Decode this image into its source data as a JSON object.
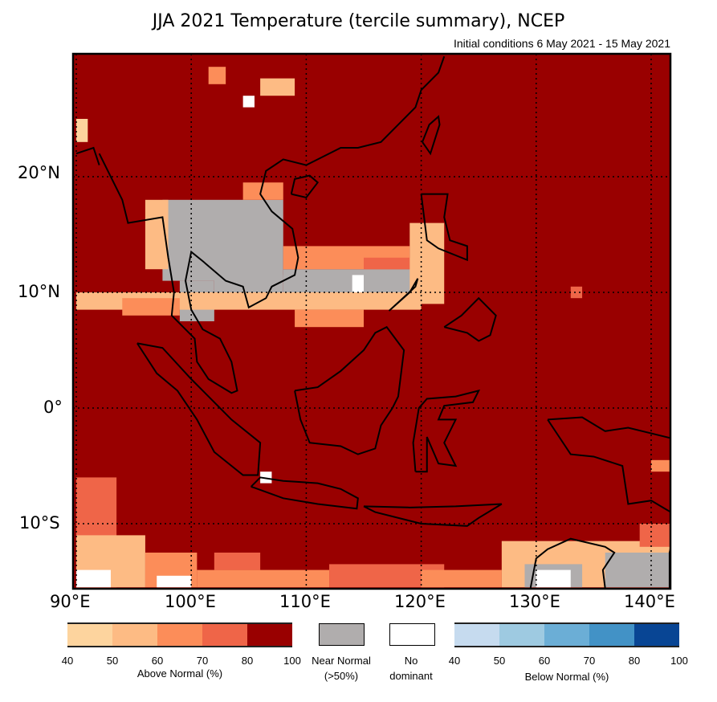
{
  "title": "JJA 2021 Temperature (tercile summary), NCEP",
  "subtitle": "Initial conditions 6 May 2021 - 15 May 2021",
  "axes": {
    "lon_labels": [
      "90°E",
      "100°E",
      "110°E",
      "120°E",
      "130°E",
      "140°E"
    ],
    "lat_labels": [
      "20°N",
      "10°N",
      "0°",
      "10°S"
    ]
  },
  "legend": {
    "above": {
      "label": "Above Normal (%)",
      "ticks": [
        "40",
        "50",
        "60",
        "70",
        "80",
        "100"
      ],
      "colors": [
        "#fdd49e",
        "#fdbb84",
        "#fc8d59",
        "#ef6548",
        "#990000"
      ]
    },
    "near": {
      "label_line1": "Near Normal",
      "label_line2": "(>50%)",
      "color": "#b0adad"
    },
    "none": {
      "label_line1": "No",
      "label_line2": "dominant",
      "color": "#ffffff"
    },
    "below": {
      "label": "Below Normal (%)",
      "ticks": [
        "40",
        "50",
        "60",
        "70",
        "80",
        "100"
      ],
      "colors": [
        "#c6dbef",
        "#9ecae1",
        "#6baed6",
        "#4292c6",
        "#084594"
      ]
    }
  },
  "map_data": {
    "background_category": "above_80_100",
    "extent": {
      "lon": [
        89.7,
        141.7
      ],
      "lat": [
        -15.6,
        30.4
      ]
    },
    "patches": [
      {
        "lon": [
          97.5,
          108
        ],
        "lat": [
          11,
          18
        ],
        "cat": "near"
      },
      {
        "lon": [
          99,
          102
        ],
        "lat": [
          7.5,
          11
        ],
        "cat": "near"
      },
      {
        "lon": [
          102,
          108
        ],
        "lat": [
          9,
          11.5
        ],
        "cat": "near"
      },
      {
        "lon": [
          108,
          120
        ],
        "lat": [
          10,
          12
        ],
        "cat": "near"
      },
      {
        "lon": [
          114,
          115
        ],
        "lat": [
          10,
          11.5
        ],
        "cat": "none"
      },
      {
        "lon": [
          96,
          98
        ],
        "lat": [
          12,
          18
        ],
        "cat": "a50"
      },
      {
        "lon": [
          104.5,
          108
        ],
        "lat": [
          18,
          19.5
        ],
        "cat": "a60"
      },
      {
        "lon": [
          90,
          120
        ],
        "lat": [
          8.5,
          10
        ],
        "cat": "a50"
      },
      {
        "lon": [
          94,
          99
        ],
        "lat": [
          8,
          9.5
        ],
        "cat": "a60"
      },
      {
        "lon": [
          109,
          115
        ],
        "lat": [
          7,
          8.5
        ],
        "cat": "a60"
      },
      {
        "lon": [
          108,
          119
        ],
        "lat": [
          12,
          14
        ],
        "cat": "a60"
      },
      {
        "lon": [
          115,
          119
        ],
        "lat": [
          12,
          13
        ],
        "cat": "a70"
      },
      {
        "lon": [
          119,
          122
        ],
        "lat": [
          9,
          16
        ],
        "cat": "a50"
      },
      {
        "lon": [
          90,
          91
        ],
        "lat": [
          23,
          25
        ],
        "cat": "a40"
      },
      {
        "lon": [
          104.5,
          105.5
        ],
        "lat": [
          26,
          27
        ],
        "cat": "none"
      },
      {
        "lon": [
          101.5,
          103
        ],
        "lat": [
          28,
          29.5
        ],
        "cat": "a60"
      },
      {
        "lon": [
          106,
          109
        ],
        "lat": [
          27,
          28.5
        ],
        "cat": "a50"
      },
      {
        "lon": [
          90,
          93.5
        ],
        "lat": [
          -15.5,
          -6
        ],
        "cat": "a70"
      },
      {
        "lon": [
          90,
          96
        ],
        "lat": [
          -15.5,
          -11
        ],
        "cat": "a50"
      },
      {
        "lon": [
          90,
          93
        ],
        "lat": [
          -15.5,
          -14
        ],
        "cat": "none"
      },
      {
        "lon": [
          96,
          100.5
        ],
        "lat": [
          -15.5,
          -12.5
        ],
        "cat": "a60"
      },
      {
        "lon": [
          97,
          100
        ],
        "lat": [
          -15.5,
          -14.5
        ],
        "cat": "none"
      },
      {
        "lon": [
          100.5,
          112
        ],
        "lat": [
          -15.5,
          -14
        ],
        "cat": "a60"
      },
      {
        "lon": [
          102,
          106
        ],
        "lat": [
          -14,
          -12.5
        ],
        "cat": "a70"
      },
      {
        "lon": [
          112,
          122
        ],
        "lat": [
          -15.5,
          -13.5
        ],
        "cat": "a70"
      },
      {
        "lon": [
          120,
          127
        ],
        "lat": [
          -15.5,
          -14
        ],
        "cat": "a60"
      },
      {
        "lon": [
          127,
          141.7
        ],
        "lat": [
          -15.5,
          -11.5
        ],
        "cat": "a50"
      },
      {
        "lon": [
          129,
          134
        ],
        "lat": [
          -15.5,
          -13.5
        ],
        "cat": "near"
      },
      {
        "lon": [
          130,
          133
        ],
        "lat": [
          -15.5,
          -14
        ],
        "cat": "none"
      },
      {
        "lon": [
          136,
          141.7
        ],
        "lat": [
          -15.5,
          -12.5
        ],
        "cat": "near"
      },
      {
        "lon": [
          139,
          141.7
        ],
        "lat": [
          -12,
          -10
        ],
        "cat": "a70"
      },
      {
        "lon": [
          140,
          141.7
        ],
        "lat": [
          -5.5,
          -4.5
        ],
        "cat": "a60"
      },
      {
        "lon": [
          106,
          107
        ],
        "lat": [
          -6.5,
          -5.5
        ],
        "cat": "none"
      },
      {
        "lon": [
          133,
          134
        ],
        "lat": [
          9.5,
          10.5
        ],
        "cat": "a70"
      }
    ]
  }
}
